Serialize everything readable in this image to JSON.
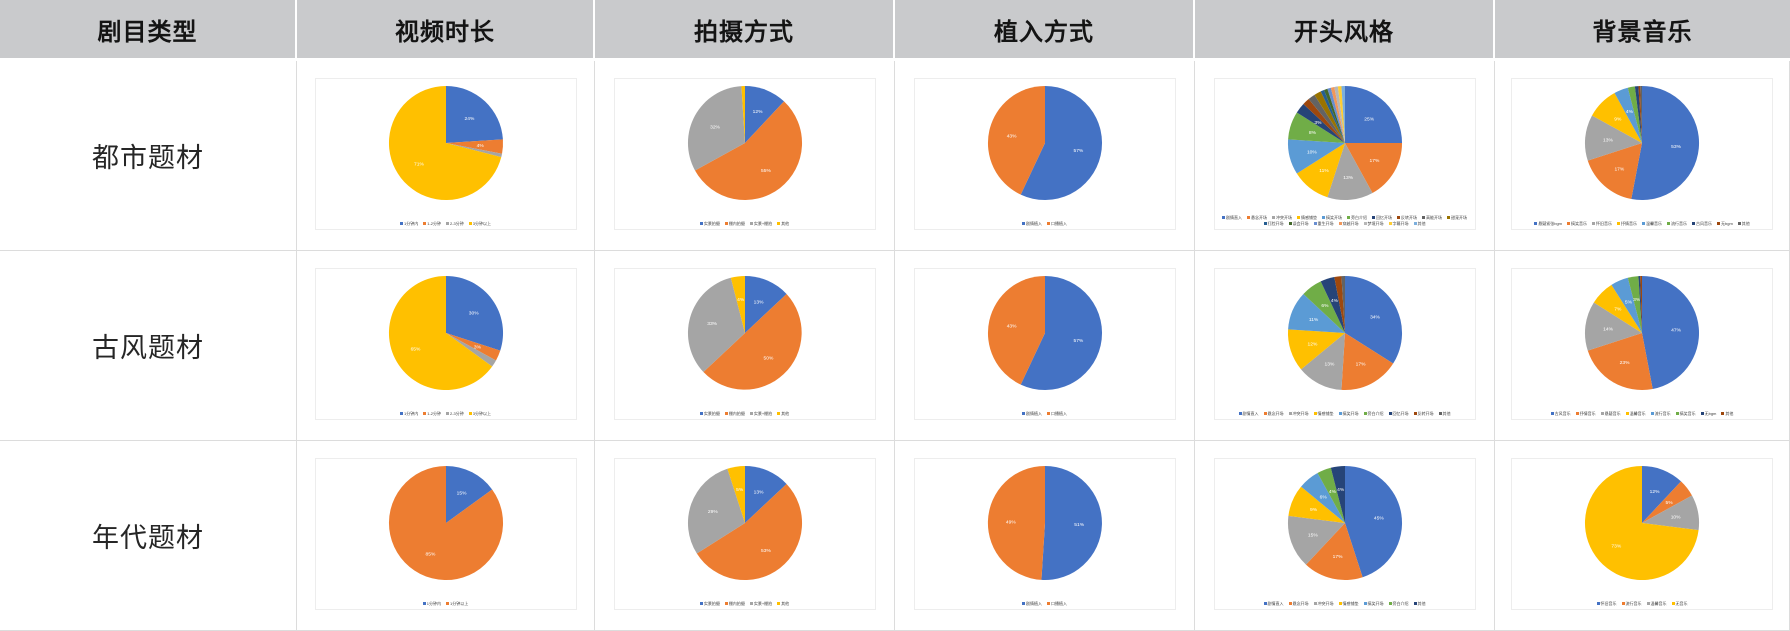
{
  "header": {
    "columns": [
      "剧目类型",
      "视频时长",
      "拍摄方式",
      "植入方式",
      "开头风格",
      "背景音乐"
    ]
  },
  "rows": [
    {
      "label": "都市题材"
    },
    {
      "label": "古风题材"
    },
    {
      "label": "年代题材"
    }
  ],
  "palette": {
    "blue": "#4472C4",
    "orange": "#ED7D31",
    "gray": "#A5A5A5",
    "yellow": "#FFC000",
    "light_blue": "#5B9BD5",
    "green": "#70AD47",
    "navy": "#264478",
    "brown": "#9E480E",
    "dark_gray": "#636363",
    "olive": "#997300",
    "header_bg": "#c9cacc",
    "grid_line": "#dcdcdc"
  },
  "chart_data": [
    {
      "type": "pie",
      "row": "都市题材",
      "column": "视频时长",
      "slices": [
        {
          "label": "1分钟内",
          "value": 24,
          "color": "#4472C4"
        },
        {
          "label": "1-2分钟",
          "value": 4,
          "color": "#ED7D31"
        },
        {
          "label": "2-3分钟",
          "value": 1,
          "color": "#A5A5A5"
        },
        {
          "label": "3分钟以上",
          "value": 71,
          "color": "#FFC000"
        }
      ]
    },
    {
      "type": "pie",
      "row": "都市题材",
      "column": "拍摄方式",
      "slices": [
        {
          "label": "实景拍摄",
          "value": 12,
          "color": "#4472C4"
        },
        {
          "label": "棚内拍摄",
          "value": 55,
          "color": "#ED7D31"
        },
        {
          "label": "实景+棚拍",
          "value": 32,
          "color": "#A5A5A5"
        },
        {
          "label": "其他",
          "value": 1,
          "color": "#FFC000"
        }
      ]
    },
    {
      "type": "pie",
      "row": "都市题材",
      "column": "植入方式",
      "slices": [
        {
          "label": "剧情植入",
          "value": 57,
          "color": "#4472C4"
        },
        {
          "label": "口播植入",
          "value": 43,
          "color": "#ED7D31"
        }
      ]
    },
    {
      "type": "pie",
      "row": "都市题材",
      "column": "开头风格",
      "slices": [
        {
          "label": "剧情直入",
          "value": 25,
          "color": "#4472C4"
        },
        {
          "label": "悬念开场",
          "value": 17,
          "color": "#ED7D31"
        },
        {
          "label": "冲突开场",
          "value": 13,
          "color": "#A5A5A5"
        },
        {
          "label": "情感铺垫",
          "value": 11,
          "color": "#FFC000"
        },
        {
          "label": "搞笑开场",
          "value": 10,
          "color": "#5B9BD5"
        },
        {
          "label": "旁白介绍",
          "value": 8,
          "color": "#70AD47"
        },
        {
          "label": "回忆开场",
          "value": 3,
          "color": "#264478"
        },
        {
          "label": "反转开场",
          "value": 2,
          "color": "#9E480E"
        },
        {
          "label": "高能开场",
          "value": 2,
          "color": "#636363"
        },
        {
          "label": "甜宠开场",
          "value": 2,
          "color": "#997300"
        },
        {
          "label": "打脸开场",
          "value": 1,
          "color": "#255E91"
        },
        {
          "label": "误会开场",
          "value": 1,
          "color": "#43682B"
        },
        {
          "label": "重生开场",
          "value": 1,
          "color": "#698ED0"
        },
        {
          "label": "穿越开场",
          "value": 1,
          "color": "#F1975A"
        },
        {
          "label": "梦境开场",
          "value": 1,
          "color": "#B7B7B7"
        },
        {
          "label": "字幕开场",
          "value": 1,
          "color": "#FFCD33"
        },
        {
          "label": "其他",
          "value": 1,
          "color": "#7CAFDD"
        }
      ]
    },
    {
      "type": "pie",
      "row": "都市题材",
      "column": "背景音乐",
      "slices": [
        {
          "label": "悬疑紧张bgm",
          "value": 53,
          "color": "#4472C4"
        },
        {
          "label": "搞笑音乐",
          "value": 17,
          "color": "#ED7D31"
        },
        {
          "label": "怀旧音乐",
          "value": 13,
          "color": "#A5A5A5"
        },
        {
          "label": "抒情音乐",
          "value": 9,
          "color": "#FFC000"
        },
        {
          "label": "温馨音乐",
          "value": 4,
          "color": "#5B9BD5"
        },
        {
          "label": "流行音乐",
          "value": 2,
          "color": "#70AD47"
        },
        {
          "label": "古风音乐",
          "value": 1,
          "color": "#264478"
        },
        {
          "label": "无bgm",
          "value": 0.5,
          "color": "#9E480E"
        },
        {
          "label": "其他",
          "value": 0.5,
          "color": "#636363"
        }
      ]
    },
    {
      "type": "pie",
      "row": "古风题材",
      "column": "视频时长",
      "slices": [
        {
          "label": "1分钟内",
          "value": 30,
          "color": "#4472C4"
        },
        {
          "label": "1-2分钟",
          "value": 3,
          "color": "#ED7D31"
        },
        {
          "label": "2-3分钟",
          "value": 2,
          "color": "#A5A5A5"
        },
        {
          "label": "3分钟以上",
          "value": 65,
          "color": "#FFC000"
        }
      ]
    },
    {
      "type": "pie",
      "row": "古风题材",
      "column": "拍摄方式",
      "slices": [
        {
          "label": "实景拍摄",
          "value": 13,
          "color": "#4472C4"
        },
        {
          "label": "棚内拍摄",
          "value": 50,
          "color": "#ED7D31"
        },
        {
          "label": "实景+棚拍",
          "value": 33,
          "color": "#A5A5A5"
        },
        {
          "label": "其他",
          "value": 4,
          "color": "#FFC000"
        }
      ]
    },
    {
      "type": "pie",
      "row": "古风题材",
      "column": "植入方式",
      "slices": [
        {
          "label": "剧情植入",
          "value": 57,
          "color": "#4472C4"
        },
        {
          "label": "口播植入",
          "value": 43,
          "color": "#ED7D31"
        }
      ]
    },
    {
      "type": "pie",
      "row": "古风题材",
      "column": "开头风格",
      "slices": [
        {
          "label": "剧情直入",
          "value": 34,
          "color": "#4472C4"
        },
        {
          "label": "悬念开场",
          "value": 17,
          "color": "#ED7D31"
        },
        {
          "label": "冲突开场",
          "value": 13,
          "color": "#A5A5A5"
        },
        {
          "label": "情感铺垫",
          "value": 12,
          "color": "#FFC000"
        },
        {
          "label": "搞笑开场",
          "value": 11,
          "color": "#5B9BD5"
        },
        {
          "label": "旁白介绍",
          "value": 6,
          "color": "#70AD47"
        },
        {
          "label": "回忆开场",
          "value": 4,
          "color": "#264478"
        },
        {
          "label": "反转开场",
          "value": 2,
          "color": "#9E480E"
        },
        {
          "label": "其他",
          "value": 1,
          "color": "#636363"
        }
      ]
    },
    {
      "type": "pie",
      "row": "古风题材",
      "column": "背景音乐",
      "slices": [
        {
          "label": "古风音乐",
          "value": 47,
          "color": "#4472C4"
        },
        {
          "label": "抒情音乐",
          "value": 23,
          "color": "#ED7D31"
        },
        {
          "label": "悬疑音乐",
          "value": 14,
          "color": "#A5A5A5"
        },
        {
          "label": "温馨音乐",
          "value": 7,
          "color": "#FFC000"
        },
        {
          "label": "流行音乐",
          "value": 5,
          "color": "#5B9BD5"
        },
        {
          "label": "搞笑音乐",
          "value": 3,
          "color": "#70AD47"
        },
        {
          "label": "无bgm",
          "value": 0.5,
          "color": "#264478"
        },
        {
          "label": "其他",
          "value": 0.5,
          "color": "#9E480E"
        }
      ]
    },
    {
      "type": "pie",
      "row": "年代题材",
      "column": "视频时长",
      "slices": [
        {
          "label": "1分钟内",
          "value": 15,
          "color": "#4472C4"
        },
        {
          "label": "1分钟以上",
          "value": 85,
          "color": "#ED7D31"
        }
      ]
    },
    {
      "type": "pie",
      "row": "年代题材",
      "column": "拍摄方式",
      "slices": [
        {
          "label": "实景拍摄",
          "value": 13,
          "color": "#4472C4"
        },
        {
          "label": "棚内拍摄",
          "value": 53,
          "color": "#ED7D31"
        },
        {
          "label": "实景+棚拍",
          "value": 29,
          "color": "#A5A5A5"
        },
        {
          "label": "其他",
          "value": 5,
          "color": "#FFC000"
        }
      ]
    },
    {
      "type": "pie",
      "row": "年代题材",
      "column": "植入方式",
      "slices": [
        {
          "label": "剧情植入",
          "value": 51,
          "color": "#4472C4"
        },
        {
          "label": "口播植入",
          "value": 49,
          "color": "#ED7D31"
        }
      ]
    },
    {
      "type": "pie",
      "row": "年代题材",
      "column": "开头风格",
      "slices": [
        {
          "label": "剧情直入",
          "value": 45,
          "color": "#4472C4"
        },
        {
          "label": "悬念开场",
          "value": 17,
          "color": "#ED7D31"
        },
        {
          "label": "冲突开场",
          "value": 15,
          "color": "#A5A5A5"
        },
        {
          "label": "情感铺垫",
          "value": 9,
          "color": "#FFC000"
        },
        {
          "label": "搞笑开场",
          "value": 6,
          "color": "#5B9BD5"
        },
        {
          "label": "旁白介绍",
          "value": 4,
          "color": "#70AD47"
        },
        {
          "label": "其他",
          "value": 4,
          "color": "#264478"
        }
      ]
    },
    {
      "type": "pie",
      "row": "年代题材",
      "column": "背景音乐",
      "slices": [
        {
          "label": "怀旧音乐",
          "value": 12,
          "color": "#4472C4"
        },
        {
          "label": "流行音乐",
          "value": 5,
          "color": "#ED7D31"
        },
        {
          "label": "温馨音乐",
          "value": 10,
          "color": "#A5A5A5"
        },
        {
          "label": "无音乐",
          "value": 73,
          "color": "#FFC000"
        }
      ]
    }
  ]
}
